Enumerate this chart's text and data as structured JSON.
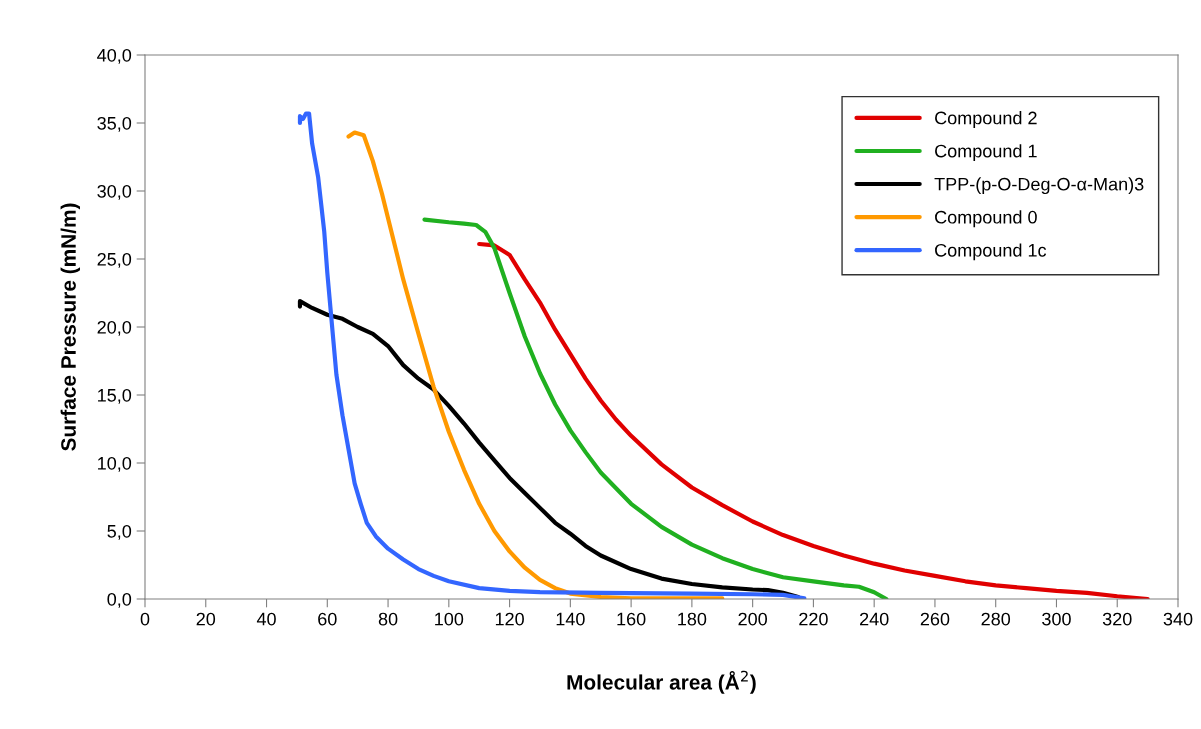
{
  "chart_data": {
    "type": "line",
    "xlabel": "Molecular area (Å$^{2}$)",
    "ylabel": "Surface Pressure (mN/m)",
    "xlim": [
      0,
      340
    ],
    "xticks": [
      0,
      20,
      40,
      60,
      80,
      100,
      120,
      140,
      160,
      180,
      200,
      220,
      240,
      260,
      280,
      300,
      320,
      340
    ],
    "ylim": [
      0,
      40
    ],
    "yticks": [
      {
        "value": 0,
        "label": "0,0"
      },
      {
        "value": 5,
        "label": "5,0"
      },
      {
        "value": 10,
        "label": "10,0"
      },
      {
        "value": 15,
        "label": "15,0"
      },
      {
        "value": 20,
        "label": "20,0"
      },
      {
        "value": 25,
        "label": "25,0"
      },
      {
        "value": 30,
        "label": "30,0"
      },
      {
        "value": 35,
        "label": "35,0"
      },
      {
        "value": 40,
        "label": "40,0"
      }
    ],
    "grid": false,
    "legend": "top right",
    "marker": "none",
    "line_style": "solid",
    "series": [
      {
        "name": "Compound 2",
        "color": "#e00000",
        "x": [
          110,
          115,
          120,
          125,
          130,
          135,
          140,
          145,
          150,
          155,
          160,
          170,
          180,
          190,
          200,
          210,
          220,
          230,
          240,
          250,
          260,
          270,
          280,
          290,
          300,
          310,
          320,
          330
        ],
        "values": [
          26.1,
          26.0,
          25.3,
          23.5,
          21.8,
          19.8,
          18.0,
          16.2,
          14.6,
          13.2,
          12.0,
          9.9,
          8.2,
          6.9,
          5.7,
          4.7,
          3.9,
          3.2,
          2.6,
          2.1,
          1.7,
          1.3,
          1.0,
          0.8,
          0.6,
          0.45,
          0.2,
          0.0
        ]
      },
      {
        "name": "Compound 1",
        "color": "#20b020",
        "x": [
          92,
          100,
          105,
          109,
          112,
          115,
          120,
          125,
          130,
          135,
          140,
          145,
          150,
          160,
          170,
          180,
          190,
          200,
          210,
          220,
          230,
          235,
          240,
          244
        ],
        "values": [
          27.9,
          27.7,
          27.6,
          27.5,
          27.0,
          25.8,
          22.5,
          19.3,
          16.6,
          14.3,
          12.4,
          10.8,
          9.3,
          7.0,
          5.3,
          4.0,
          3.0,
          2.2,
          1.6,
          1.3,
          1.0,
          0.9,
          0.5,
          0.0
        ]
      },
      {
        "name": "TPP-(p-O-Deg-O-α-Man)3",
        "color": "#000000",
        "x": [
          51,
          51,
          55,
          60,
          65,
          70,
          75,
          80,
          85,
          90,
          95,
          100,
          105,
          110,
          115,
          120,
          125,
          130,
          135,
          140,
          145,
          150,
          160,
          170,
          180,
          190,
          200,
          205,
          210,
          215
        ],
        "values": [
          21.5,
          21.9,
          21.4,
          20.9,
          20.6,
          20.0,
          19.5,
          18.6,
          17.2,
          16.2,
          15.4,
          14.2,
          12.9,
          11.5,
          10.2,
          8.9,
          7.8,
          6.7,
          5.6,
          4.8,
          3.9,
          3.2,
          2.2,
          1.5,
          1.1,
          0.85,
          0.7,
          0.65,
          0.45,
          0.15
        ]
      },
      {
        "name": "Compound 0",
        "color": "#ff9900",
        "x": [
          67,
          69,
          72,
          75,
          78,
          80,
          85,
          90,
          95,
          100,
          105,
          110,
          115,
          120,
          125,
          130,
          135,
          140,
          150,
          160,
          190
        ],
        "values": [
          34.0,
          34.3,
          34.1,
          32.2,
          29.8,
          28.0,
          23.5,
          19.5,
          15.6,
          12.3,
          9.5,
          7.0,
          5.0,
          3.5,
          2.3,
          1.4,
          0.8,
          0.4,
          0.15,
          0.05,
          0.05
        ]
      },
      {
        "name": "Compound 1c",
        "color": "#3366ff",
        "x": [
          51,
          51,
          52,
          53,
          54,
          55,
          57,
          58,
          59,
          60,
          61,
          62,
          63,
          65,
          67,
          69,
          71,
          73,
          76,
          80,
          85,
          90,
          95,
          100,
          110,
          120,
          130,
          150,
          180,
          200,
          210,
          217
        ],
        "values": [
          35.0,
          35.5,
          35.3,
          35.7,
          35.7,
          33.5,
          31,
          29,
          27,
          24,
          21.5,
          19,
          16.5,
          13.5,
          11,
          8.5,
          7.0,
          5.6,
          4.6,
          3.7,
          2.9,
          2.2,
          1.7,
          1.3,
          0.8,
          0.6,
          0.5,
          0.45,
          0.4,
          0.35,
          0.3,
          0.05
        ]
      }
    ]
  }
}
